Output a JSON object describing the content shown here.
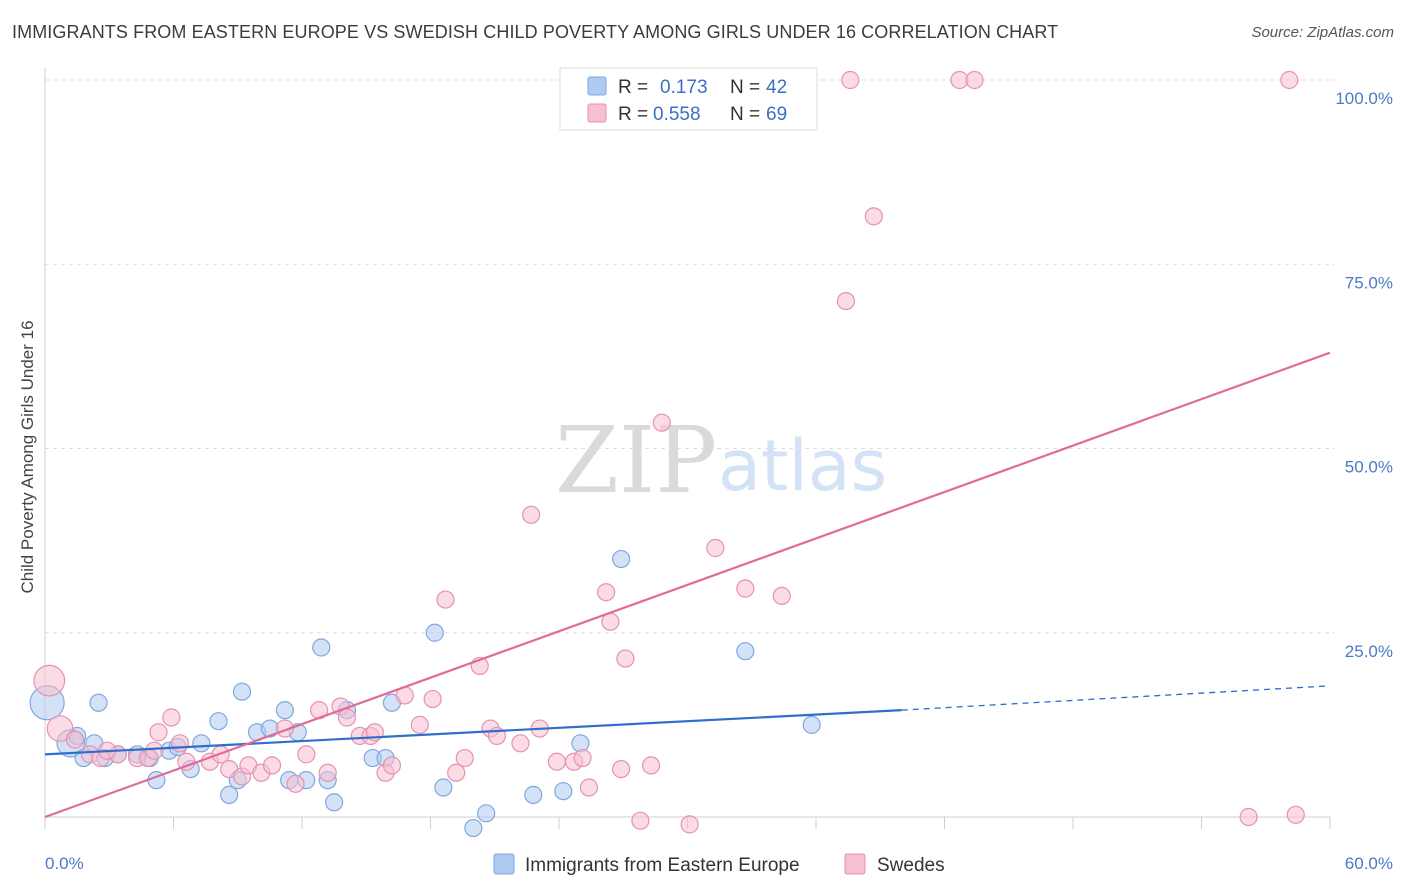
{
  "title": "IMMIGRANTS FROM EASTERN EUROPE VS SWEDISH CHILD POVERTY AMONG GIRLS UNDER 16 CORRELATION CHART",
  "source": "Source: ZipAtlas.com",
  "watermark": {
    "zip": "ZIP",
    "atlas": "atlas"
  },
  "legend": {
    "r_label": "R =",
    "n_label": "N =",
    "series": [
      {
        "name": "Immigrants from Eastern Europe",
        "r": "0.173",
        "n": "42",
        "color": "#aecbf0",
        "stroke": "#7fa8df"
      },
      {
        "name": "Swedes",
        "r": "0.558",
        "n": "69",
        "color": "#f7c0d2",
        "stroke": "#e592b0"
      }
    ]
  },
  "chart_data": {
    "type": "scatter",
    "ylabel": "Child Poverty Among Girls Under 16",
    "xlim": [
      0,
      60
    ],
    "ylim": [
      0,
      100
    ],
    "x_tick_labels": [
      "0.0%",
      "60.0%"
    ],
    "y_ticks": [
      25,
      50,
      75,
      100
    ],
    "y_tick_labels": [
      "25.0%",
      "50.0%",
      "75.0%",
      "100.0%"
    ],
    "grid": true,
    "series": [
      {
        "name": "Immigrants from Eastern Europe",
        "color": "#aecbf0",
        "stroke": "#7fa8df",
        "line_color": "#2f6fcc",
        "trend": {
          "x0": 0,
          "y0": 8.5,
          "x1": 40,
          "y1": 14.5,
          "dash_x1": 60,
          "dash_y1": 17.8
        },
        "points": [
          {
            "x": 0.1,
            "y": 15.5,
            "s": 2.0
          },
          {
            "x": 1.2,
            "y": 10.0,
            "s": 1.6
          },
          {
            "x": 1.8,
            "y": 8.0
          },
          {
            "x": 2.3,
            "y": 10.0
          },
          {
            "x": 2.5,
            "y": 15.5
          },
          {
            "x": 2.8,
            "y": 8.0
          },
          {
            "x": 4.3,
            "y": 8.5
          },
          {
            "x": 4.9,
            "y": 8.0
          },
          {
            "x": 5.2,
            "y": 5.0
          },
          {
            "x": 5.8,
            "y": 9.0
          },
          {
            "x": 6.2,
            "y": 9.5
          },
          {
            "x": 6.8,
            "y": 6.5
          },
          {
            "x": 7.3,
            "y": 10.0
          },
          {
            "x": 8.1,
            "y": 13.0
          },
          {
            "x": 8.6,
            "y": 3.0
          },
          {
            "x": 9.0,
            "y": 5.0
          },
          {
            "x": 9.2,
            "y": 17.0
          },
          {
            "x": 9.9,
            "y": 11.5
          },
          {
            "x": 10.5,
            "y": 12.0
          },
          {
            "x": 11.2,
            "y": 14.5
          },
          {
            "x": 11.4,
            "y": 5.0
          },
          {
            "x": 11.8,
            "y": 11.5
          },
          {
            "x": 12.9,
            "y": 23.0
          },
          {
            "x": 12.2,
            "y": 5.0
          },
          {
            "x": 13.2,
            "y": 5.0
          },
          {
            "x": 13.5,
            "y": 2.0
          },
          {
            "x": 14.1,
            "y": 14.5
          },
          {
            "x": 15.3,
            "y": 8.0
          },
          {
            "x": 15.9,
            "y": 8.0
          },
          {
            "x": 16.2,
            "y": 15.5
          },
          {
            "x": 18.2,
            "y": 25.0
          },
          {
            "x": 18.6,
            "y": 4.0
          },
          {
            "x": 20.0,
            "y": -1.5
          },
          {
            "x": 20.6,
            "y": 0.5
          },
          {
            "x": 22.8,
            "y": 3.0
          },
          {
            "x": 24.2,
            "y": 3.5
          },
          {
            "x": 25.0,
            "y": 10.0
          },
          {
            "x": 26.9,
            "y": 35.0
          },
          {
            "x": 32.7,
            "y": 22.5
          },
          {
            "x": 35.8,
            "y": 12.5
          },
          {
            "x": 1.5,
            "y": 11.0
          },
          {
            "x": 3.4,
            "y": 8.5
          }
        ]
      },
      {
        "name": "Swedes",
        "color": "#f7c0d2",
        "stroke": "#e592b0",
        "line_color": "#e06b98",
        "trend": {
          "x0": 0,
          "y0": 0,
          "x1": 60,
          "y1": 63
        },
        "points": [
          {
            "x": 0.2,
            "y": 18.5,
            "s": 1.8
          },
          {
            "x": 0.7,
            "y": 12.0,
            "s": 1.5
          },
          {
            "x": 1.4,
            "y": 10.5
          },
          {
            "x": 2.1,
            "y": 8.5
          },
          {
            "x": 2.6,
            "y": 8.0
          },
          {
            "x": 3.4,
            "y": 8.5
          },
          {
            "x": 4.3,
            "y": 8.0
          },
          {
            "x": 4.8,
            "y": 8.0
          },
          {
            "x": 5.1,
            "y": 9.0
          },
          {
            "x": 5.3,
            "y": 11.5
          },
          {
            "x": 5.9,
            "y": 13.5
          },
          {
            "x": 6.3,
            "y": 10.0
          },
          {
            "x": 6.6,
            "y": 7.5
          },
          {
            "x": 7.7,
            "y": 7.5
          },
          {
            "x": 8.2,
            "y": 8.5
          },
          {
            "x": 8.6,
            "y": 6.5
          },
          {
            "x": 9.2,
            "y": 5.5
          },
          {
            "x": 9.5,
            "y": 7.0
          },
          {
            "x": 10.1,
            "y": 6.0
          },
          {
            "x": 10.6,
            "y": 7.0
          },
          {
            "x": 11.2,
            "y": 12.0
          },
          {
            "x": 11.7,
            "y": 4.5
          },
          {
            "x": 12.2,
            "y": 8.5
          },
          {
            "x": 12.8,
            "y": 14.5
          },
          {
            "x": 13.2,
            "y": 6.0
          },
          {
            "x": 13.8,
            "y": 15.0
          },
          {
            "x": 14.1,
            "y": 13.5
          },
          {
            "x": 14.7,
            "y": 11.0
          },
          {
            "x": 15.2,
            "y": 11.0
          },
          {
            "x": 15.4,
            "y": 11.5
          },
          {
            "x": 15.9,
            "y": 6.0
          },
          {
            "x": 16.2,
            "y": 7.0
          },
          {
            "x": 16.8,
            "y": 16.5
          },
          {
            "x": 17.5,
            "y": 12.5
          },
          {
            "x": 18.1,
            "y": 16.0
          },
          {
            "x": 18.7,
            "y": 29.5
          },
          {
            "x": 19.2,
            "y": 6.0
          },
          {
            "x": 19.6,
            "y": 8.0
          },
          {
            "x": 20.3,
            "y": 20.5
          },
          {
            "x": 20.8,
            "y": 12.0
          },
          {
            "x": 21.1,
            "y": 11.0
          },
          {
            "x": 22.2,
            "y": 10.0
          },
          {
            "x": 22.7,
            "y": 41.0
          },
          {
            "x": 23.1,
            "y": 12.0
          },
          {
            "x": 23.9,
            "y": 7.5
          },
          {
            "x": 24.7,
            "y": 7.5
          },
          {
            "x": 25.1,
            "y": 8.0
          },
          {
            "x": 25.4,
            "y": 4.0
          },
          {
            "x": 26.2,
            "y": 30.5
          },
          {
            "x": 26.4,
            "y": 26.5
          },
          {
            "x": 26.9,
            "y": 6.5
          },
          {
            "x": 27.1,
            "y": 21.5
          },
          {
            "x": 27.8,
            "y": -0.5
          },
          {
            "x": 28.3,
            "y": 7.0
          },
          {
            "x": 28.8,
            "y": 53.5
          },
          {
            "x": 30.1,
            "y": -1.0
          },
          {
            "x": 31.3,
            "y": 36.5
          },
          {
            "x": 32.7,
            "y": 31.0
          },
          {
            "x": 34.4,
            "y": 30.0
          },
          {
            "x": 37.4,
            "y": 70.0
          },
          {
            "x": 37.6,
            "y": 100.0
          },
          {
            "x": 38.7,
            "y": 81.5
          },
          {
            "x": 42.7,
            "y": 100.0
          },
          {
            "x": 43.4,
            "y": 100.0
          },
          {
            "x": 56.2,
            "y": 0.0
          },
          {
            "x": 58.1,
            "y": 100.0
          },
          {
            "x": 58.4,
            "y": 0.3
          },
          {
            "x": 28.0,
            "y": 100.0
          },
          {
            "x": 2.9,
            "y": 9.0
          }
        ]
      }
    ]
  }
}
